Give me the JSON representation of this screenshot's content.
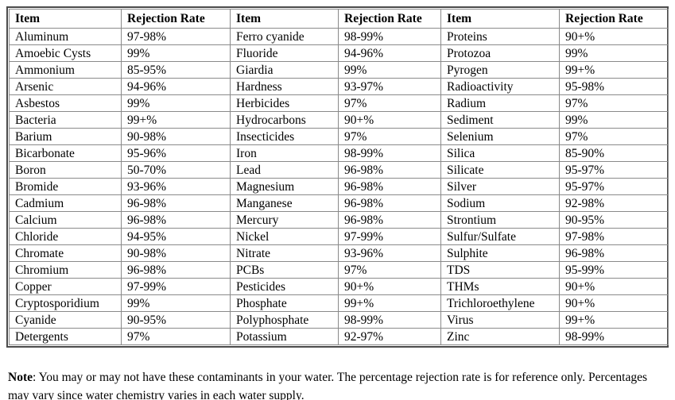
{
  "table": {
    "column_groups": [
      {
        "header": {
          "item": "Item",
          "rate": "Rejection Rate"
        },
        "rows": [
          {
            "item": "Aluminum",
            "rate": "97-98%"
          },
          {
            "item": "Amoebic Cysts",
            "rate": "99%"
          },
          {
            "item": "Ammonium",
            "rate": "85-95%"
          },
          {
            "item": "Arsenic",
            "rate": "94-96%"
          },
          {
            "item": "Asbestos",
            "rate": "99%"
          },
          {
            "item": "Bacteria",
            "rate": "99+%"
          },
          {
            "item": "Barium",
            "rate": "90-98%"
          },
          {
            "item": "Bicarbonate",
            "rate": "95-96%"
          },
          {
            "item": "Boron",
            "rate": "50-70%"
          },
          {
            "item": "Bromide",
            "rate": "93-96%"
          },
          {
            "item": "Cadmium",
            "rate": "96-98%"
          },
          {
            "item": "Calcium",
            "rate": "96-98%"
          },
          {
            "item": "Chloride",
            "rate": "94-95%"
          },
          {
            "item": "Chromate",
            "rate": "90-98%"
          },
          {
            "item": "Chromium",
            "rate": "96-98%"
          },
          {
            "item": "Copper",
            "rate": "97-99%"
          },
          {
            "item": "Cryptosporidium",
            "rate": "99%"
          },
          {
            "item": "Cyanide",
            "rate": "90-95%"
          },
          {
            "item": "Detergents",
            "rate": "97%"
          }
        ]
      },
      {
        "header": {
          "item": "Item",
          "rate": "Rejection Rate"
        },
        "rows": [
          {
            "item": "Ferro cyanide",
            "rate": "98-99%"
          },
          {
            "item": "Fluoride",
            "rate": "94-96%"
          },
          {
            "item": "Giardia",
            "rate": "99%"
          },
          {
            "item": "Hardness",
            "rate": "93-97%"
          },
          {
            "item": "Herbicides",
            "rate": "97%"
          },
          {
            "item": "Hydrocarbons",
            "rate": "90+%"
          },
          {
            "item": "Insecticides",
            "rate": "97%"
          },
          {
            "item": "Iron",
            "rate": "98-99%"
          },
          {
            "item": "Lead",
            "rate": "96-98%"
          },
          {
            "item": "Magnesium",
            "rate": "96-98%"
          },
          {
            "item": "Manganese",
            "rate": "96-98%"
          },
          {
            "item": "Mercury",
            "rate": "96-98%"
          },
          {
            "item": "Nickel",
            "rate": "97-99%"
          },
          {
            "item": "Nitrate",
            "rate": "93-96%"
          },
          {
            "item": "PCBs",
            "rate": "97%"
          },
          {
            "item": "Pesticides",
            "rate": "90+%"
          },
          {
            "item": "Phosphate",
            "rate": "99+%"
          },
          {
            "item": "Polyphosphate",
            "rate": "98-99%"
          },
          {
            "item": "Potassium",
            "rate": "92-97%"
          }
        ]
      },
      {
        "header": {
          "item": "Item",
          "rate": "Rejection Rate"
        },
        "rows": [
          {
            "item": "Proteins",
            "rate": "90+%"
          },
          {
            "item": "Protozoa",
            "rate": "99%"
          },
          {
            "item": "Pyrogen",
            "rate": "99+%"
          },
          {
            "item": "Radioactivity",
            "rate": "95-98%"
          },
          {
            "item": "Radium",
            "rate": "97%"
          },
          {
            "item": "Sediment",
            "rate": "99%"
          },
          {
            "item": "Selenium",
            "rate": "97%"
          },
          {
            "item": "Silica",
            "rate": "85-90%"
          },
          {
            "item": "Silicate",
            "rate": "95-97%"
          },
          {
            "item": "Silver",
            "rate": "95-97%"
          },
          {
            "item": "Sodium",
            "rate": "92-98%"
          },
          {
            "item": "Strontium",
            "rate": "90-95%"
          },
          {
            "item": "Sulfur/Sulfate",
            "rate": "97-98%"
          },
          {
            "item": "Sulphite",
            "rate": "96-98%"
          },
          {
            "item": "TDS",
            "rate": "95-99%"
          },
          {
            "item": "THMs",
            "rate": "90+%"
          },
          {
            "item": "Trichloroethylene",
            "rate": "90+%"
          },
          {
            "item": "Virus",
            "rate": "99+%"
          },
          {
            "item": "Zinc",
            "rate": "98-99%"
          }
        ]
      }
    ]
  },
  "note": {
    "label": "Note",
    "text": ": You may or may not have these contaminants in your water. The percentage rejection rate is for reference only. Percentages may vary since water chemistry varies in each water supply."
  },
  "colors": {
    "background": "#ffffff",
    "text": "#000000",
    "outer_border": "#4a4a4a",
    "grid_border": "#8a8a8a"
  }
}
